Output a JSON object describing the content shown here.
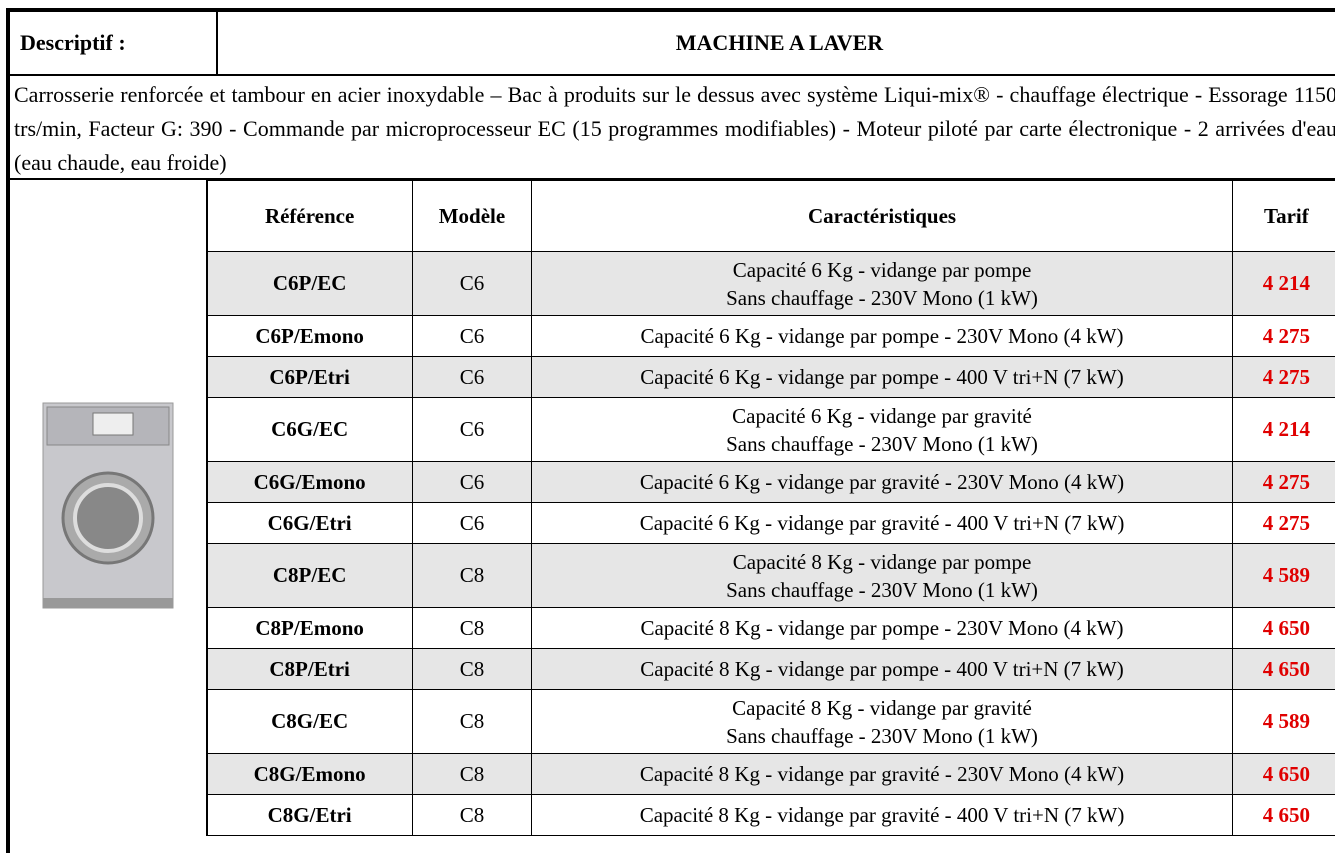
{
  "header": {
    "label": "Descriptif :",
    "title": "MACHINE A LAVER"
  },
  "description": "Carrosserie renforcée et tambour en acier inoxydable – Bac à produits sur le dessus avec système Liqui-mix® - chauffage électrique - Essorage 1150 trs/min, Facteur G: 390 - Commande par microprocesseur EC (15 programmes modifiables) - Moteur piloté par carte électronique - 2 arrivées d'eau (eau chaude, eau froide)",
  "table": {
    "columns": [
      "Référence",
      "Modèle",
      "Caractéristiques",
      "Tarif"
    ],
    "rows": [
      [
        "C6P/EC",
        "C6",
        [
          "Capacité 6 Kg - vidange par pompe",
          "Sans chauffage - 230V Mono (1 kW)"
        ],
        "4 214"
      ],
      [
        "C6P/Emono",
        "C6",
        [
          "Capacité 6 Kg - vidange par pompe - 230V Mono (4 kW)"
        ],
        "4 275"
      ],
      [
        "C6P/Etri",
        "C6",
        [
          "Capacité 6 Kg - vidange par pompe - 400 V tri+N (7 kW)"
        ],
        "4 275"
      ],
      [
        "C6G/EC",
        "C6",
        [
          "Capacité 6 Kg - vidange par gravité",
          "Sans chauffage - 230V Mono (1 kW)"
        ],
        "4 214"
      ],
      [
        "C6G/Emono",
        "C6",
        [
          "Capacité 6 Kg - vidange par gravité - 230V Mono (4 kW)"
        ],
        "4 275"
      ],
      [
        "C6G/Etri",
        "C6",
        [
          "Capacité 6 Kg - vidange par gravité - 400 V tri+N (7 kW)"
        ],
        "4 275"
      ],
      [
        "C8P/EC",
        "C8",
        [
          "Capacité 8 Kg - vidange par pompe",
          "Sans chauffage - 230V Mono (1 kW)"
        ],
        "4 589"
      ],
      [
        "C8P/Emono",
        "C8",
        [
          "Capacité 8 Kg - vidange par pompe - 230V Mono (4 kW)"
        ],
        "4 650"
      ],
      [
        "C8P/Etri",
        "C8",
        [
          "Capacité 8 Kg - vidange par pompe - 400 V tri+N (7 kW)"
        ],
        "4 650"
      ],
      [
        "C8G/EC",
        "C8",
        [
          "Capacité 8 Kg - vidange par gravité",
          "Sans chauffage - 230V Mono (1 kW)"
        ],
        "4 589"
      ],
      [
        "C8G/Emono",
        "C8",
        [
          "Capacité 8 Kg - vidange par gravité - 230V Mono (4 kW)"
        ],
        "4 650"
      ],
      [
        "C8G/Etri",
        "C8",
        [
          "Capacité 8 Kg - vidange par gravité - 400 V tri+N (7 kW)"
        ],
        "4 650"
      ]
    ]
  }
}
